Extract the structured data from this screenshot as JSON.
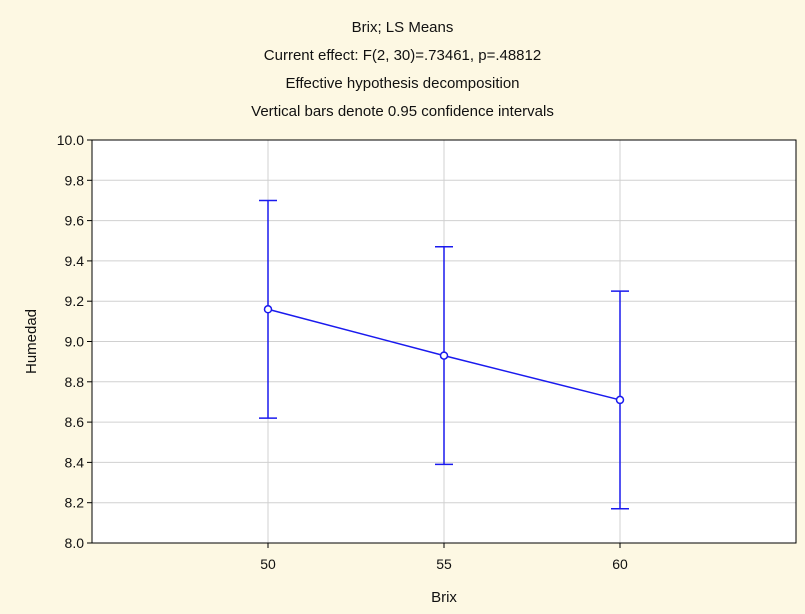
{
  "chart_data": {
    "type": "line",
    "title": "Brix; LS Means",
    "subtitle_lines": [
      "Current effect: F(2, 30)=.73461, p=.48812",
      "Effective hypothesis decomposition",
      "Vertical bars denote 0.95 confidence intervals"
    ],
    "xlabel": "Brix",
    "ylabel": "Humedad",
    "categories": [
      "50",
      "55",
      "60"
    ],
    "series": [
      {
        "values": [
          9.16,
          8.93,
          8.71
        ],
        "ci_lower": [
          8.62,
          8.39,
          8.17
        ],
        "ci_upper": [
          9.7,
          9.47,
          9.25
        ]
      }
    ],
    "ylim": [
      8.0,
      10.0
    ],
    "yticks": [
      "8.0",
      "8.2",
      "8.4",
      "8.6",
      "8.8",
      "9.0",
      "9.2",
      "9.4",
      "9.6",
      "9.8",
      "10.0"
    ],
    "grid": true,
    "colors": {
      "series": "#1a1aee",
      "background": "#fdf8e3",
      "plot_background": "#ffffff",
      "grid": "#d0d0d0"
    }
  }
}
